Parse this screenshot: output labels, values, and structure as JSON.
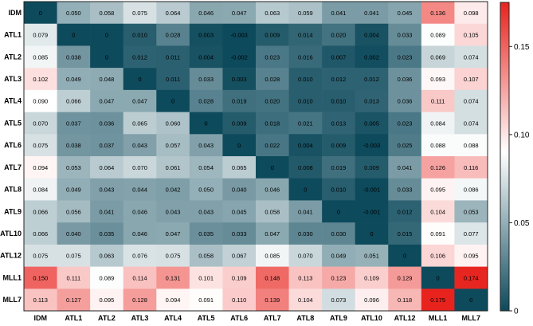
{
  "chart_data": {
    "type": "heatmap",
    "title": "",
    "xlabel": "",
    "ylabel": "",
    "row_labels": [
      "IDM",
      "ATL1",
      "ATL2",
      "ATL3",
      "ATL4",
      "ATL5",
      "ATL6",
      "ATL7",
      "ATL8",
      "ATL9",
      "ATL10",
      "ATL12",
      "MLL1",
      "MLL7"
    ],
    "col_labels": [
      "IDM",
      "ATL1",
      "ATL2",
      "ATL3",
      "ATL4",
      "ATL5",
      "ATL6",
      "ATL7",
      "ATL8",
      "ATL9",
      "ATL10",
      "ATL12",
      "MLL1",
      "MLL7"
    ],
    "values": [
      [
        0,
        0.05,
        0.058,
        0.075,
        0.064,
        0.046,
        0.047,
        0.063,
        0.059,
        0.041,
        0.041,
        0.045,
        0.136,
        0.098
      ],
      [
        0.079,
        0,
        0,
        0.01,
        0.028,
        0.003,
        -0.003,
        0.009,
        0.014,
        0.02,
        0.004,
        0.033,
        0.089,
        0.105
      ],
      [
        0.085,
        0.038,
        0,
        0.012,
        0.011,
        0.004,
        -0.002,
        0.023,
        0.016,
        0.007,
        0.002,
        0.023,
        0.069,
        0.074
      ],
      [
        0.102,
        0.049,
        0.048,
        0,
        0.011,
        0.033,
        0.003,
        0.028,
        0.01,
        0.012,
        0.012,
        0.036,
        0.093,
        0.107
      ],
      [
        0.09,
        0.066,
        0.047,
        0.047,
        0,
        0.028,
        0.019,
        0.02,
        0.01,
        0.01,
        0.013,
        0.036,
        0.111,
        0.074
      ],
      [
        0.07,
        0.037,
        0.036,
        0.065,
        0.06,
        0,
        0.009,
        0.018,
        0.021,
        0.013,
        0.005,
        0.023,
        0.084,
        0.074
      ],
      [
        0.075,
        0.038,
        0.037,
        0.043,
        0.057,
        0.043,
        0,
        0.022,
        0.004,
        0.009,
        -0.003,
        0.025,
        0.088,
        0.088
      ],
      [
        0.094,
        0.053,
        0.064,
        0.07,
        0.061,
        0.054,
        0.065,
        0,
        0.008,
        0.019,
        0.009,
        0.041,
        0.126,
        0.116
      ],
      [
        0.084,
        0.049,
        0.043,
        0.044,
        0.042,
        0.05,
        0.04,
        0.046,
        0,
        0.01,
        -0.001,
        0.033,
        0.095,
        0.086
      ],
      [
        0.066,
        0.056,
        0.041,
        0.046,
        0.043,
        0.043,
        0.045,
        0.058,
        0.041,
        0,
        -0.001,
        0.012,
        0.104,
        0.053
      ],
      [
        0.066,
        0.04,
        0.035,
        0.046,
        0.047,
        0.035,
        0.033,
        0.047,
        0.03,
        0.03,
        0,
        0.015,
        0.091,
        0.077
      ],
      [
        0.075,
        0.075,
        0.063,
        0.076,
        0.075,
        0.058,
        0.067,
        0.085,
        0.07,
        0.049,
        0.051,
        0,
        0.106,
        0.095
      ],
      [
        0.15,
        0.111,
        0.089,
        0.114,
        0.131,
        0.101,
        0.109,
        0.148,
        0.113,
        0.123,
        0.109,
        0.129,
        0,
        0.174
      ],
      [
        0.113,
        0.127,
        0.095,
        0.128,
        0.094,
        0.091,
        0.11,
        0.139,
        0.104,
        0.073,
        0.096,
        0.118,
        0.175,
        0
      ]
    ],
    "value_labels": [
      [
        "0",
        "0.050",
        "0.058",
        "0.075",
        "0.064",
        "0.046",
        "0.047",
        "0.063",
        "0.059",
        "0.041",
        "0.041",
        "0.045",
        "0.136",
        "0.098"
      ],
      [
        "0.079",
        "0",
        "0",
        "0.010",
        "0.028",
        "0.003",
        "-0.003",
        "0.009",
        "0.014",
        "0.020",
        "0.004",
        "0.033",
        "0.089",
        "0.105"
      ],
      [
        "0.085",
        "0.038",
        "0",
        "0.012",
        "0.011",
        "0.004",
        "-0.002",
        "0.023",
        "0.016",
        "0.007",
        "0.002",
        "0.023",
        "0.069",
        "0.074"
      ],
      [
        "0.102",
        "0.049",
        "0.048",
        "0",
        "0.011",
        "0.033",
        "0.003",
        "0.028",
        "0.010",
        "0.012",
        "0.012",
        "0.036",
        "0.093",
        "0.107"
      ],
      [
        "0.090",
        "0.066",
        "0.047",
        "0.047",
        "0",
        "0.028",
        "0.019",
        "0.020",
        "0.010",
        "0.010",
        "0.013",
        "0.036",
        "0.111",
        "0.074"
      ],
      [
        "0.070",
        "0.037",
        "0.036",
        "0.065",
        "0.060",
        "0",
        "0.009",
        "0.018",
        "0.021",
        "0.013",
        "0.005",
        "0.023",
        "0.084",
        "0.074"
      ],
      [
        "0.075",
        "0.038",
        "0.037",
        "0.043",
        "0.057",
        "0.043",
        "0",
        "0.022",
        "0.004",
        "0.009",
        "-0.003",
        "0.025",
        "0.088",
        "0.088"
      ],
      [
        "0.094",
        "0.053",
        "0.064",
        "0.070",
        "0.061",
        "0.054",
        "0.065",
        "0",
        "0.008",
        "0.019",
        "0.009",
        "0.041",
        "0.126",
        "0.116"
      ],
      [
        "0.084",
        "0.049",
        "0.043",
        "0.044",
        "0.042",
        "0.050",
        "0.040",
        "0.046",
        "0",
        "0.010",
        "-0.001",
        "0.033",
        "0.095",
        "0.086"
      ],
      [
        "0.066",
        "0.056",
        "0.041",
        "0.046",
        "0.043",
        "0.043",
        "0.045",
        "0.058",
        "0.041",
        "0",
        "-0.001",
        "0.012",
        "0.104",
        "0.053"
      ],
      [
        "0.066",
        "0.040",
        "0.035",
        "0.046",
        "0.047",
        "0.035",
        "0.033",
        "0.047",
        "0.030",
        "0.030",
        "0",
        "0.015",
        "0.091",
        "0.077"
      ],
      [
        "0.075",
        "0.075",
        "0.063",
        "0.076",
        "0.075",
        "0.058",
        "0.067",
        "0.085",
        "0.070",
        "0.049",
        "0.051",
        "0",
        "0.106",
        "0.095"
      ],
      [
        "0.150",
        "0.111",
        "0.089",
        "0.114",
        "0.131",
        "0.101",
        "0.109",
        "0.148",
        "0.113",
        "0.123",
        "0.109",
        "0.129",
        "0",
        "0.174"
      ],
      [
        "0.113",
        "0.127",
        "0.095",
        "0.128",
        "0.094",
        "0.091",
        "0.110",
        "0.139",
        "0.104",
        "0.073",
        "0.096",
        "0.118",
        "0.175",
        "0"
      ]
    ],
    "colorbar": {
      "range": [
        0,
        0.175
      ],
      "ticks": [
        0,
        0.05,
        0.1,
        0.15
      ],
      "tick_labels": [
        "0",
        "0.05",
        "0.10",
        "0.15"
      ],
      "position": "right"
    },
    "colormap": {
      "low": "#0d4a5c",
      "mid": "#ffffff",
      "high": "#e8231e",
      "mid_value": 0.09
    },
    "grid": false,
    "legend": "colorbar-right"
  }
}
